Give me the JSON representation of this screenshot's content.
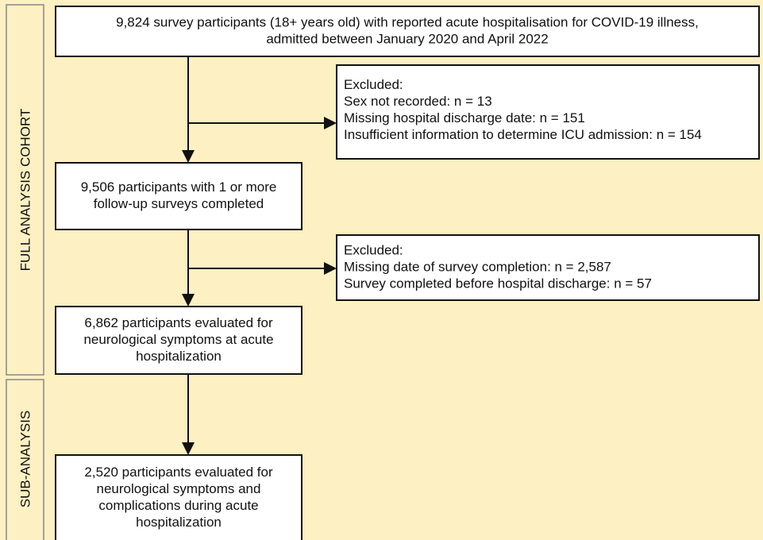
{
  "side_labels": [
    "FULL ANALYSIS COHORT",
    "SUB-ANALYSIS"
  ],
  "nodes": [
    {
      "lines": [
        "9,824 survey participants (18+ years old) with reported acute hospitalisation for COVID-19 illness,",
        "admitted between January 2020 and April 2022"
      ]
    },
    {
      "lines": [
        "Excluded:",
        "Sex not recorded: n = 13",
        "Missing hospital discharge date: n = 151",
        "Insufficient information to determine ICU admission: n = 154"
      ]
    },
    {
      "lines": [
        "9,506 participants with 1 or more",
        "follow-up surveys completed"
      ]
    },
    {
      "lines": [
        "Excluded:",
        "Missing date of survey completion: n = 2,587",
        "Survey completed before hospital discharge: n = 57"
      ]
    },
    {
      "lines": [
        "6,862 participants evaluated for",
        "neurological symptoms at acute",
        "hospitalization"
      ]
    },
    {
      "lines": [
        "2,520 participants evaluated for",
        "neurological symptoms and",
        "complications during acute",
        "hospitalization"
      ]
    }
  ]
}
